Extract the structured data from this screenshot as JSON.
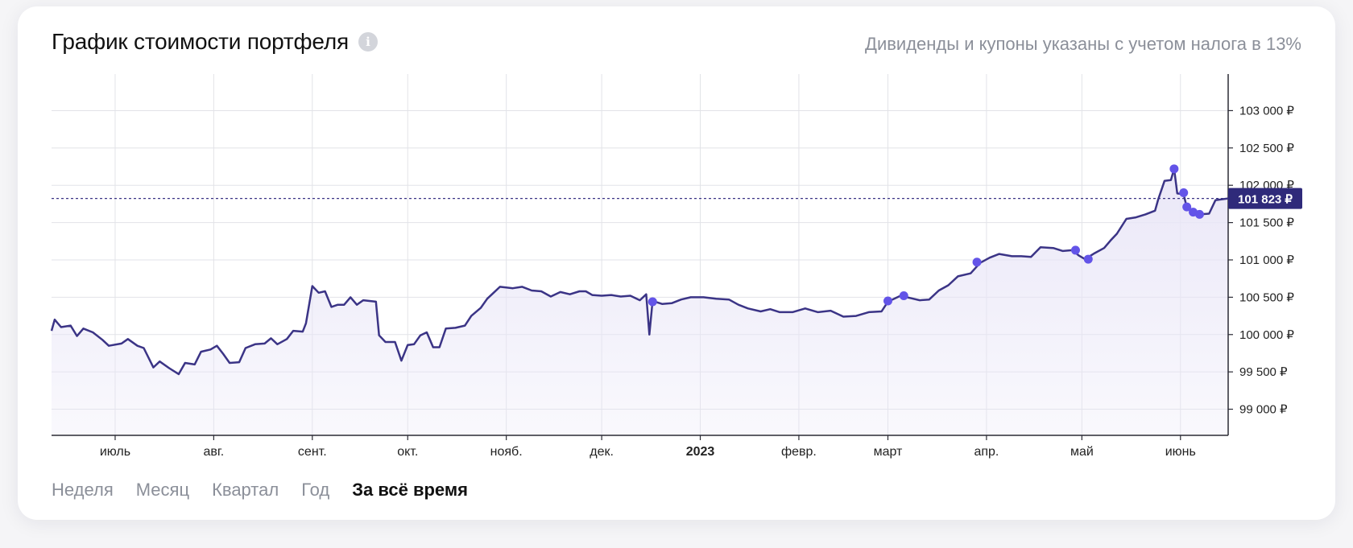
{
  "header": {
    "title": "График стоимости портфеля",
    "info_icon": "info-icon",
    "note": "Дивиденды и купоны указаны с учетом налога в 13%"
  },
  "tabs": [
    {
      "label": "Неделя",
      "active": false
    },
    {
      "label": "Месяц",
      "active": false
    },
    {
      "label": "Квартал",
      "active": false
    },
    {
      "label": "Год",
      "active": false
    },
    {
      "label": "За всё время",
      "active": true
    }
  ],
  "colors": {
    "line": "#3b3486",
    "marker": "#6354e8",
    "current_badge_bg": "#2f2a7a",
    "area_fill": "#e9e6f7",
    "grid": "#e2e3e8"
  },
  "chart_data": {
    "type": "line",
    "currency": "₽",
    "ylim": [
      98650,
      103490
    ],
    "x_range": [
      "2022-06-11",
      "2023-06-16"
    ],
    "yticks": [
      {
        "value": 99000,
        "label": "99 000 ₽"
      },
      {
        "value": 99500,
        "label": "99 500 ₽"
      },
      {
        "value": 100000,
        "label": "100 000 ₽"
      },
      {
        "value": 100500,
        "label": "100 500 ₽"
      },
      {
        "value": 101000,
        "label": "101 000 ₽"
      },
      {
        "value": 101500,
        "label": "101 500 ₽"
      },
      {
        "value": 102000,
        "label": "102 000 ₽"
      },
      {
        "value": 102500,
        "label": "102 500 ₽"
      },
      {
        "value": 103000,
        "label": "103 000 ₽"
      }
    ],
    "xticks": [
      {
        "date": "2022-07-01",
        "label": "июль",
        "bold": false
      },
      {
        "date": "2022-08-01",
        "label": "авг.",
        "bold": false
      },
      {
        "date": "2022-09-01",
        "label": "сент.",
        "bold": false
      },
      {
        "date": "2022-10-01",
        "label": "окт.",
        "bold": false
      },
      {
        "date": "2022-11-01",
        "label": "нояб.",
        "bold": false
      },
      {
        "date": "2022-12-01",
        "label": "дек.",
        "bold": false
      },
      {
        "date": "2023-01-01",
        "label": "2023",
        "bold": true
      },
      {
        "date": "2023-02-01",
        "label": "февр.",
        "bold": false
      },
      {
        "date": "2023-03-01",
        "label": "март",
        "bold": false
      },
      {
        "date": "2023-04-01",
        "label": "апр.",
        "bold": false
      },
      {
        "date": "2023-05-01",
        "label": "май",
        "bold": false
      },
      {
        "date": "2023-06-01",
        "label": "июнь",
        "bold": false
      }
    ],
    "current": {
      "value": 101823,
      "label": "101 823 ₽"
    },
    "series": [
      {
        "points": [
          [
            "2022-06-11",
            100050
          ],
          [
            "2022-06-12",
            100200
          ],
          [
            "2022-06-14",
            100100
          ],
          [
            "2022-06-17",
            100120
          ],
          [
            "2022-06-19",
            99980
          ],
          [
            "2022-06-21",
            100080
          ],
          [
            "2022-06-24",
            100030
          ],
          [
            "2022-06-27",
            99930
          ],
          [
            "2022-06-29",
            99850
          ],
          [
            "2022-07-03",
            99880
          ],
          [
            "2022-07-05",
            99940
          ],
          [
            "2022-07-08",
            99850
          ],
          [
            "2022-07-10",
            99820
          ],
          [
            "2022-07-13",
            99560
          ],
          [
            "2022-07-15",
            99640
          ],
          [
            "2022-07-18",
            99550
          ],
          [
            "2022-07-21",
            99470
          ],
          [
            "2022-07-23",
            99620
          ],
          [
            "2022-07-26",
            99600
          ],
          [
            "2022-07-28",
            99770
          ],
          [
            "2022-07-31",
            99800
          ],
          [
            "2022-08-02",
            99850
          ],
          [
            "2022-08-04",
            99740
          ],
          [
            "2022-08-06",
            99620
          ],
          [
            "2022-08-09",
            99630
          ],
          [
            "2022-08-11",
            99820
          ],
          [
            "2022-08-14",
            99870
          ],
          [
            "2022-08-17",
            99880
          ],
          [
            "2022-08-19",
            99950
          ],
          [
            "2022-08-21",
            99870
          ],
          [
            "2022-08-24",
            99940
          ],
          [
            "2022-08-26",
            100050
          ],
          [
            "2022-08-29",
            100040
          ],
          [
            "2022-08-30",
            100150
          ],
          [
            "2022-09-01",
            100650
          ],
          [
            "2022-09-03",
            100560
          ],
          [
            "2022-09-05",
            100580
          ],
          [
            "2022-09-07",
            100370
          ],
          [
            "2022-09-09",
            100400
          ],
          [
            "2022-09-11",
            100400
          ],
          [
            "2022-09-13",
            100500
          ],
          [
            "2022-09-15",
            100400
          ],
          [
            "2022-09-17",
            100460
          ],
          [
            "2022-09-21",
            100440
          ],
          [
            "2022-09-22",
            99990
          ],
          [
            "2022-09-24",
            99900
          ],
          [
            "2022-09-27",
            99900
          ],
          [
            "2022-09-29",
            99650
          ],
          [
            "2022-10-01",
            99860
          ],
          [
            "2022-10-03",
            99870
          ],
          [
            "2022-10-05",
            99990
          ],
          [
            "2022-10-07",
            100030
          ],
          [
            "2022-10-09",
            99830
          ],
          [
            "2022-10-11",
            99830
          ],
          [
            "2022-10-13",
            100080
          ],
          [
            "2022-10-16",
            100090
          ],
          [
            "2022-10-19",
            100120
          ],
          [
            "2022-10-21",
            100250
          ],
          [
            "2022-10-24",
            100360
          ],
          [
            "2022-10-26",
            100480
          ],
          [
            "2022-10-28",
            100560
          ],
          [
            "2022-10-30",
            100640
          ],
          [
            "2022-11-03",
            100620
          ],
          [
            "2022-11-06",
            100640
          ],
          [
            "2022-11-09",
            100590
          ],
          [
            "2022-11-12",
            100580
          ],
          [
            "2022-11-15",
            100510
          ],
          [
            "2022-11-18",
            100570
          ],
          [
            "2022-11-21",
            100540
          ],
          [
            "2022-11-24",
            100580
          ],
          [
            "2022-11-26",
            100580
          ],
          [
            "2022-11-28",
            100530
          ],
          [
            "2022-12-01",
            100520
          ],
          [
            "2022-12-04",
            100530
          ],
          [
            "2022-12-07",
            100510
          ],
          [
            "2022-12-10",
            100520
          ],
          [
            "2022-12-13",
            100460
          ],
          [
            "2022-12-15",
            100540
          ],
          [
            "2022-12-16",
            100000
          ],
          [
            "2022-12-17",
            100450
          ],
          [
            "2022-12-20",
            100410
          ],
          [
            "2022-12-23",
            100420
          ],
          [
            "2022-12-26",
            100470
          ],
          [
            "2022-12-29",
            100500
          ],
          [
            "2023-01-02",
            100500
          ],
          [
            "2023-01-06",
            100480
          ],
          [
            "2023-01-10",
            100470
          ],
          [
            "2023-01-13",
            100400
          ],
          [
            "2023-01-16",
            100350
          ],
          [
            "2023-01-20",
            100310
          ],
          [
            "2023-01-23",
            100340
          ],
          [
            "2023-01-26",
            100300
          ],
          [
            "2023-01-30",
            100300
          ],
          [
            "2023-02-03",
            100350
          ],
          [
            "2023-02-07",
            100300
          ],
          [
            "2023-02-11",
            100320
          ],
          [
            "2023-02-15",
            100240
          ],
          [
            "2023-02-19",
            100250
          ],
          [
            "2023-02-23",
            100300
          ],
          [
            "2023-02-27",
            100310
          ],
          [
            "2023-03-01",
            100440
          ],
          [
            "2023-03-05",
            100520
          ],
          [
            "2023-03-08",
            100490
          ],
          [
            "2023-03-11",
            100460
          ],
          [
            "2023-03-14",
            100470
          ],
          [
            "2023-03-17",
            100590
          ],
          [
            "2023-03-20",
            100660
          ],
          [
            "2023-03-23",
            100780
          ],
          [
            "2023-03-27",
            100820
          ],
          [
            "2023-03-30",
            100960
          ],
          [
            "2023-04-02",
            101030
          ],
          [
            "2023-04-05",
            101080
          ],
          [
            "2023-04-09",
            101050
          ],
          [
            "2023-04-12",
            101050
          ],
          [
            "2023-04-15",
            101040
          ],
          [
            "2023-04-18",
            101170
          ],
          [
            "2023-04-22",
            101160
          ],
          [
            "2023-04-25",
            101120
          ],
          [
            "2023-04-28",
            101130
          ],
          [
            "2023-04-30",
            101060
          ],
          [
            "2023-05-02",
            101010
          ],
          [
            "2023-05-05",
            101090
          ],
          [
            "2023-05-08",
            101160
          ],
          [
            "2023-05-10",
            101260
          ],
          [
            "2023-05-12",
            101350
          ],
          [
            "2023-05-15",
            101550
          ],
          [
            "2023-05-18",
            101570
          ],
          [
            "2023-05-21",
            101610
          ],
          [
            "2023-05-24",
            101660
          ],
          [
            "2023-05-25",
            101810
          ],
          [
            "2023-05-27",
            102060
          ],
          [
            "2023-05-29",
            102070
          ],
          [
            "2023-05-30",
            102220
          ],
          [
            "2023-05-31",
            101890
          ],
          [
            "2023-06-02",
            101880
          ],
          [
            "2023-06-03",
            101700
          ],
          [
            "2023-06-05",
            101640
          ],
          [
            "2023-06-07",
            101610
          ],
          [
            "2023-06-10",
            101620
          ],
          [
            "2023-06-12",
            101800
          ],
          [
            "2023-06-16",
            101823
          ]
        ]
      }
    ],
    "markers": [
      [
        "2022-12-17",
        100440
      ],
      [
        "2023-03-01",
        100450
      ],
      [
        "2023-03-06",
        100520
      ],
      [
        "2023-03-29",
        100970
      ],
      [
        "2023-04-29",
        101130
      ],
      [
        "2023-05-03",
        101010
      ],
      [
        "2023-05-30",
        102220
      ],
      [
        "2023-06-02",
        101900
      ],
      [
        "2023-06-03",
        101710
      ],
      [
        "2023-06-05",
        101640
      ],
      [
        "2023-06-07",
        101610
      ]
    ]
  }
}
